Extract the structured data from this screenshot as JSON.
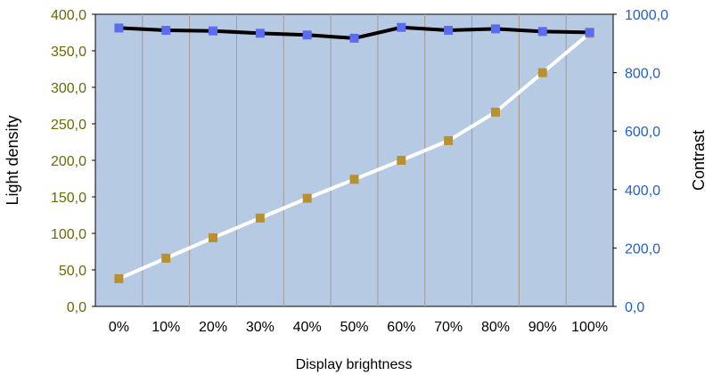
{
  "chart_data": {
    "type": "line",
    "categories": [
      "0%",
      "10%",
      "20%",
      "30%",
      "40%",
      "50%",
      "60%",
      "70%",
      "80%",
      "90%",
      "100%"
    ],
    "xlabel": "Display brightness",
    "y_left": {
      "label": "Light density",
      "lim": [
        0,
        400
      ],
      "ticks": [
        "0,0",
        "50,0",
        "100,0",
        "150,0",
        "200,0",
        "250,0",
        "300,0",
        "350,0",
        "400,0"
      ],
      "tick_values": [
        0,
        50,
        100,
        150,
        200,
        250,
        300,
        350,
        400
      ]
    },
    "y_right": {
      "label": "Contrast",
      "lim": [
        0,
        1000
      ],
      "ticks": [
        "0,0",
        "200,0",
        "400,0",
        "600,0",
        "800,0",
        "1000,0"
      ],
      "tick_values": [
        0,
        200,
        400,
        600,
        800,
        1000
      ]
    },
    "series": [
      {
        "axis": "left",
        "values": [
          38,
          66,
          94,
          121,
          148,
          174,
          200,
          227,
          266,
          320,
          374
        ],
        "line_color": "#ffffff",
        "marker_color": "#b8902e"
      },
      {
        "axis": "right",
        "values": [
          953,
          945,
          943,
          935,
          929,
          918,
          955,
          945,
          950,
          941,
          938
        ],
        "line_color": "#000000",
        "marker_color": "#5a6cf0"
      }
    ],
    "grid": "vertical",
    "plot_background": "#b7cae3",
    "grid_color": "#a89a8f"
  }
}
